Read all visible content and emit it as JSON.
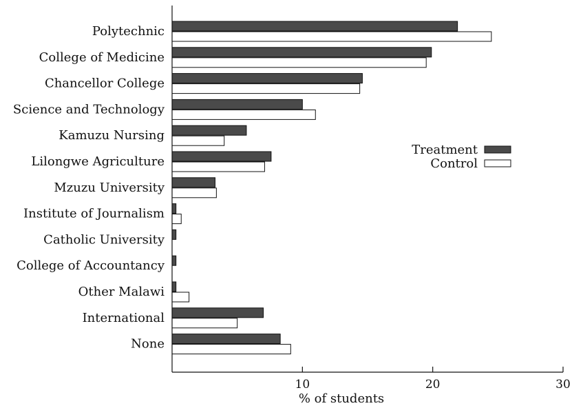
{
  "chart_data": {
    "type": "bar",
    "orientation": "horizontal",
    "title": "",
    "xlabel": "% of students",
    "ylabel": "",
    "xlim": [
      0,
      30
    ],
    "xticks": [
      10,
      20,
      30
    ],
    "grid": false,
    "legend_position": "right",
    "categories": [
      "Polytechnic",
      "College of Medicine",
      "Chancellor College",
      "Science and Technology",
      "Kamuzu Nursing",
      "Lilongwe Agriculture",
      "Mzuzu University",
      "Institute of Journalism",
      "Catholic University",
      "College of Accountancy",
      "Other Malawi",
      "International",
      "None"
    ],
    "series": [
      {
        "name": "Treatment",
        "color": "#4a4a4a",
        "values": [
          21.9,
          19.9,
          14.6,
          10.0,
          5.7,
          7.6,
          3.3,
          0.3,
          0.3,
          0.3,
          0.3,
          7.0,
          8.3
        ]
      },
      {
        "name": "Control",
        "color": "#ffffff",
        "values": [
          24.5,
          19.5,
          14.4,
          11.0,
          4.0,
          7.1,
          3.4,
          0.7,
          0.0,
          0.0,
          1.3,
          5.0,
          9.1
        ]
      }
    ]
  }
}
